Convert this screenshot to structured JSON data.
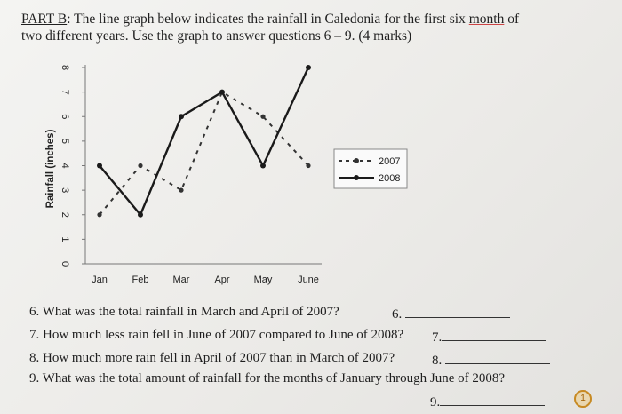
{
  "heading": {
    "part": "PART B",
    "line1_rest": ": The line graph below indicates the rainfall in Caledonia for the first six ",
    "month_word": "month",
    "line1_end": " of",
    "line2": "two different years. Use the graph to answer questions 6 – 9. (4 marks)"
  },
  "chart_data": {
    "type": "line",
    "categories": [
      "Jan",
      "Feb",
      "Mar",
      "Apr",
      "May",
      "June"
    ],
    "ylabel": "Rainfall (inches)",
    "ylim": [
      0,
      8
    ],
    "yticks": [
      "0",
      "1",
      "2",
      "3",
      "4",
      "5",
      "6",
      "7",
      "8"
    ],
    "series": [
      {
        "name": "2007",
        "style": "dashed",
        "color": "#333333",
        "values": [
          2,
          4,
          3,
          7,
          6,
          4
        ]
      },
      {
        "name": "2008",
        "style": "solid",
        "color": "#1a1a1a",
        "values": [
          4,
          2,
          6,
          7,
          4,
          8
        ]
      }
    ]
  },
  "questions": [
    {
      "text": "6.   What was the total rainfall in March and April of 2007?",
      "num": "6."
    },
    {
      "text": "7.   How much less rain fell in June of 2007 compared to June of 2008?",
      "num": "7."
    },
    {
      "text": "8.   How much more rain fell in April of 2007 than in March of 2007?",
      "num": "8."
    },
    {
      "text": "9.   What was the total amount of rainfall for the months of January through June of 2008?",
      "num": "9."
    }
  ],
  "badge": "1"
}
